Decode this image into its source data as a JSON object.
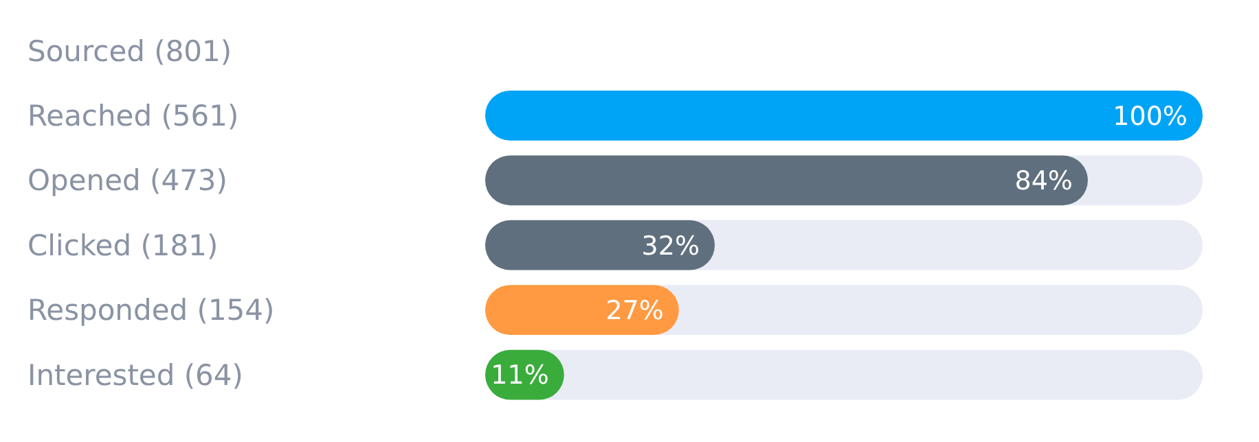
{
  "chart_data": {
    "type": "bar",
    "orientation": "horizontal",
    "categories": [
      "Sourced (801)",
      "Reached (561)",
      "Opened (473)",
      "Clicked (181)",
      "Responded (154)",
      "Interested (64)"
    ],
    "values": [
      null,
      100,
      84,
      32,
      27,
      11
    ],
    "colors": [
      "#5f6f7e",
      "#00a4f6",
      "#5f6f7e",
      "#5f6f7e",
      "#ff9a42",
      "#3aac3c"
    ],
    "value_labels": [
      null,
      "100%",
      "84%",
      "32%",
      "27%",
      "11%"
    ],
    "xlim": [
      0,
      100
    ],
    "tick_labels": "y"
  }
}
